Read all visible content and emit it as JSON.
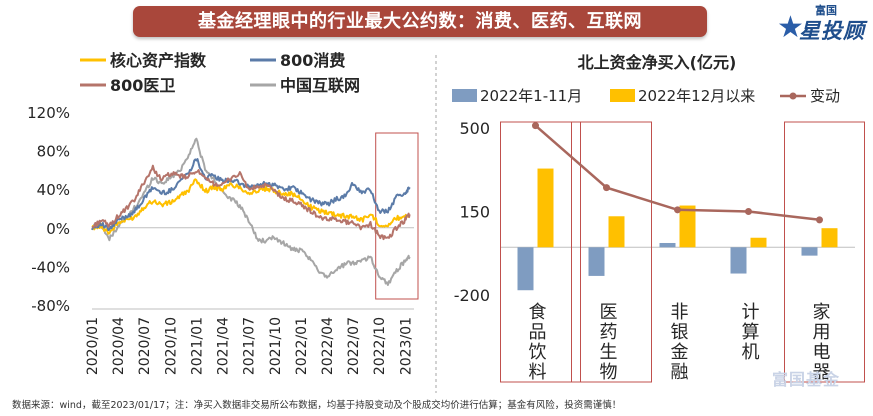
{
  "page": {
    "title": "基金经理眼中的行业最大公约数：消费、医药、互联网",
    "brand_small": "富国",
    "brand_big": "星投顾",
    "watermark": "富国基金",
    "footnote": "数据来源：wind，截至2023/01/17；注：净买入数据非交易所公布数据，均基于持股变动及个股成交均价进行估算；基金有风险，投资需谨慎！"
  },
  "colors": {
    "title_bg": "#a9473b",
    "core_assets": "#ffc000",
    "consumer800": "#5b7ba8",
    "medical800": "#b5746a",
    "china_internet": "#a6a6a6",
    "bar_ytd": "#7f9cc1",
    "bar_dec": "#ffc000",
    "change_line": "#a9675d",
    "highlight_box": "#c0504d",
    "divider": "#a6a6a6"
  },
  "chart_data": [
    {
      "type": "line",
      "title": "",
      "xlabel": "",
      "ylabel": "",
      "ylim": [
        -80,
        120
      ],
      "yticks": [
        -80,
        -40,
        0,
        40,
        80,
        120
      ],
      "ytick_labels": [
        "-80%",
        "-40%",
        "0%",
        "40%",
        "80%",
        "120%"
      ],
      "x_tick_labels": [
        "2020/01",
        "2020/04",
        "2020/07",
        "2020/10",
        "2021/01",
        "2021/04",
        "2021/07",
        "2021/10",
        "2022/01",
        "2022/04",
        "2022/07",
        "2022/10",
        "2023/01"
      ],
      "x_months": [
        0,
        3,
        6,
        9,
        12,
        15,
        18,
        21,
        24,
        27,
        30,
        33,
        36
      ],
      "x_unit": "months since 2020/01 (x_months[0] = 2020/01)",
      "legend": [
        "核心资产指数",
        "800消费",
        "800医卫",
        "中国互联网"
      ],
      "highlight_range": [
        "2022/10",
        "2023/01"
      ],
      "series": [
        {
          "name": "核心资产指数",
          "color_key": "core_assets",
          "x": [
            0,
            1,
            2,
            3,
            4,
            5,
            6,
            7,
            8,
            9,
            10,
            11,
            12,
            13,
            14,
            15,
            16,
            17,
            18,
            19,
            20,
            21,
            22,
            23,
            24,
            25,
            26,
            27,
            28,
            29,
            30,
            31,
            32,
            33,
            34,
            35,
            36,
            36.5
          ],
          "values": [
            0,
            2,
            -5,
            5,
            8,
            12,
            22,
            28,
            24,
            26,
            32,
            38,
            50,
            38,
            42,
            40,
            45,
            42,
            36,
            38,
            40,
            38,
            36,
            35,
            30,
            22,
            18,
            16,
            14,
            12,
            12,
            8,
            14,
            4,
            2,
            10,
            12,
            14
          ]
        },
        {
          "name": "800消费",
          "color_key": "consumer800",
          "x": [
            0,
            1,
            2,
            3,
            4,
            5,
            6,
            7,
            8,
            9,
            10,
            11,
            12,
            13,
            14,
            15,
            16,
            17,
            18,
            19,
            20,
            21,
            22,
            23,
            24,
            25,
            26,
            27,
            28,
            29,
            30,
            31,
            32,
            33,
            34,
            35,
            36,
            36.5
          ],
          "values": [
            0,
            4,
            -2,
            8,
            12,
            18,
            30,
            42,
            36,
            38,
            48,
            56,
            72,
            52,
            54,
            48,
            50,
            46,
            42,
            44,
            46,
            44,
            40,
            42,
            36,
            30,
            26,
            24,
            30,
            32,
            46,
            36,
            40,
            16,
            18,
            32,
            36,
            42
          ]
        },
        {
          "name": "800医卫",
          "color_key": "medical800",
          "x": [
            0,
            1,
            2,
            3,
            4,
            5,
            6,
            7,
            8,
            9,
            10,
            11,
            12,
            13,
            14,
            15,
            16,
            17,
            18,
            19,
            20,
            21,
            22,
            23,
            24,
            25,
            26,
            27,
            28,
            29,
            30,
            31,
            32,
            33,
            34,
            35,
            36,
            36.5
          ],
          "values": [
            0,
            8,
            2,
            12,
            20,
            30,
            48,
            62,
            50,
            56,
            54,
            52,
            60,
            50,
            46,
            44,
            52,
            56,
            40,
            42,
            44,
            38,
            30,
            28,
            24,
            18,
            12,
            8,
            10,
            6,
            6,
            0,
            4,
            -8,
            -12,
            0,
            8,
            14
          ]
        },
        {
          "name": "中国互联网",
          "color_key": "china_internet",
          "x": [
            0,
            1,
            2,
            3,
            4,
            5,
            6,
            7,
            8,
            9,
            10,
            11,
            12,
            13,
            14,
            15,
            16,
            17,
            18,
            19,
            20,
            21,
            22,
            23,
            24,
            25,
            26,
            27,
            28,
            29,
            30,
            31,
            32,
            33,
            34,
            35,
            36,
            36.5
          ],
          "values": [
            0,
            4,
            -12,
            2,
            10,
            22,
            36,
            52,
            46,
            52,
            58,
            74,
            92,
            60,
            50,
            38,
            30,
            22,
            8,
            -12,
            -14,
            -10,
            -16,
            -22,
            -24,
            -32,
            -44,
            -50,
            -44,
            -38,
            -36,
            -34,
            -30,
            -50,
            -58,
            -44,
            -34,
            -30
          ]
        }
      ]
    },
    {
      "type": "bar",
      "title": "北上资金净买入(亿元)",
      "xlabel": "",
      "ylabel": "",
      "ylim": [
        -200,
        500
      ],
      "yticks": [
        -200,
        150,
        500
      ],
      "ytick_labels": [
        "-200",
        "150",
        "500"
      ],
      "categories": [
        "食品饮料",
        "医药生物",
        "非银金融",
        "计算机",
        "家用电器"
      ],
      "highlighted_categories": [
        "食品饮料",
        "医药生物",
        "家用电器"
      ],
      "series": [
        {
          "name": "2022年1-11月",
          "kind": "bar",
          "color_key": "bar_ytd",
          "values": [
            -180,
            -120,
            18,
            -110,
            -35
          ]
        },
        {
          "name": "2022年12月以来",
          "kind": "bar",
          "color_key": "bar_dec",
          "values": [
            330,
            130,
            175,
            40,
            80
          ]
        },
        {
          "name": "变动",
          "kind": "line",
          "color_key": "change_line",
          "values": [
            510,
            250,
            157,
            150,
            115
          ]
        }
      ]
    }
  ]
}
